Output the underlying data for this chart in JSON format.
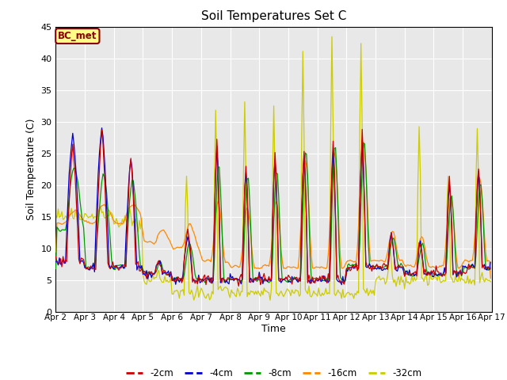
{
  "title": "Soil Temperatures Set C",
  "xlabel": "Time",
  "ylabel": "Soil Temperature (C)",
  "ylim": [
    0,
    45
  ],
  "xlim": [
    0,
    360
  ],
  "annotation": "BC_met",
  "legend_labels": [
    "-2cm",
    "-4cm",
    "-8cm",
    "-16cm",
    "-32cm"
  ],
  "legend_colors": [
    "#cc0000",
    "#0000cc",
    "#009900",
    "#ff8800",
    "#cccc00"
  ],
  "n_hours": 360,
  "x_tick_positions": [
    0,
    24,
    48,
    72,
    96,
    120,
    144,
    168,
    192,
    216,
    240,
    264,
    288,
    312,
    336,
    360
  ],
  "x_tick_labels": [
    "Apr 2",
    "Apr 3",
    "Apr 4",
    "Apr 5",
    "Apr 6",
    "Apr 7",
    "Apr 8",
    "Apr 9",
    "Apr 10",
    "Apr 11",
    "Apr 12",
    "Apr 13",
    "Apr 14",
    "Apr 15",
    "Apr 16",
    "Apr 17"
  ],
  "yticks": [
    0,
    5,
    10,
    15,
    20,
    25,
    30,
    35,
    40,
    45
  ]
}
